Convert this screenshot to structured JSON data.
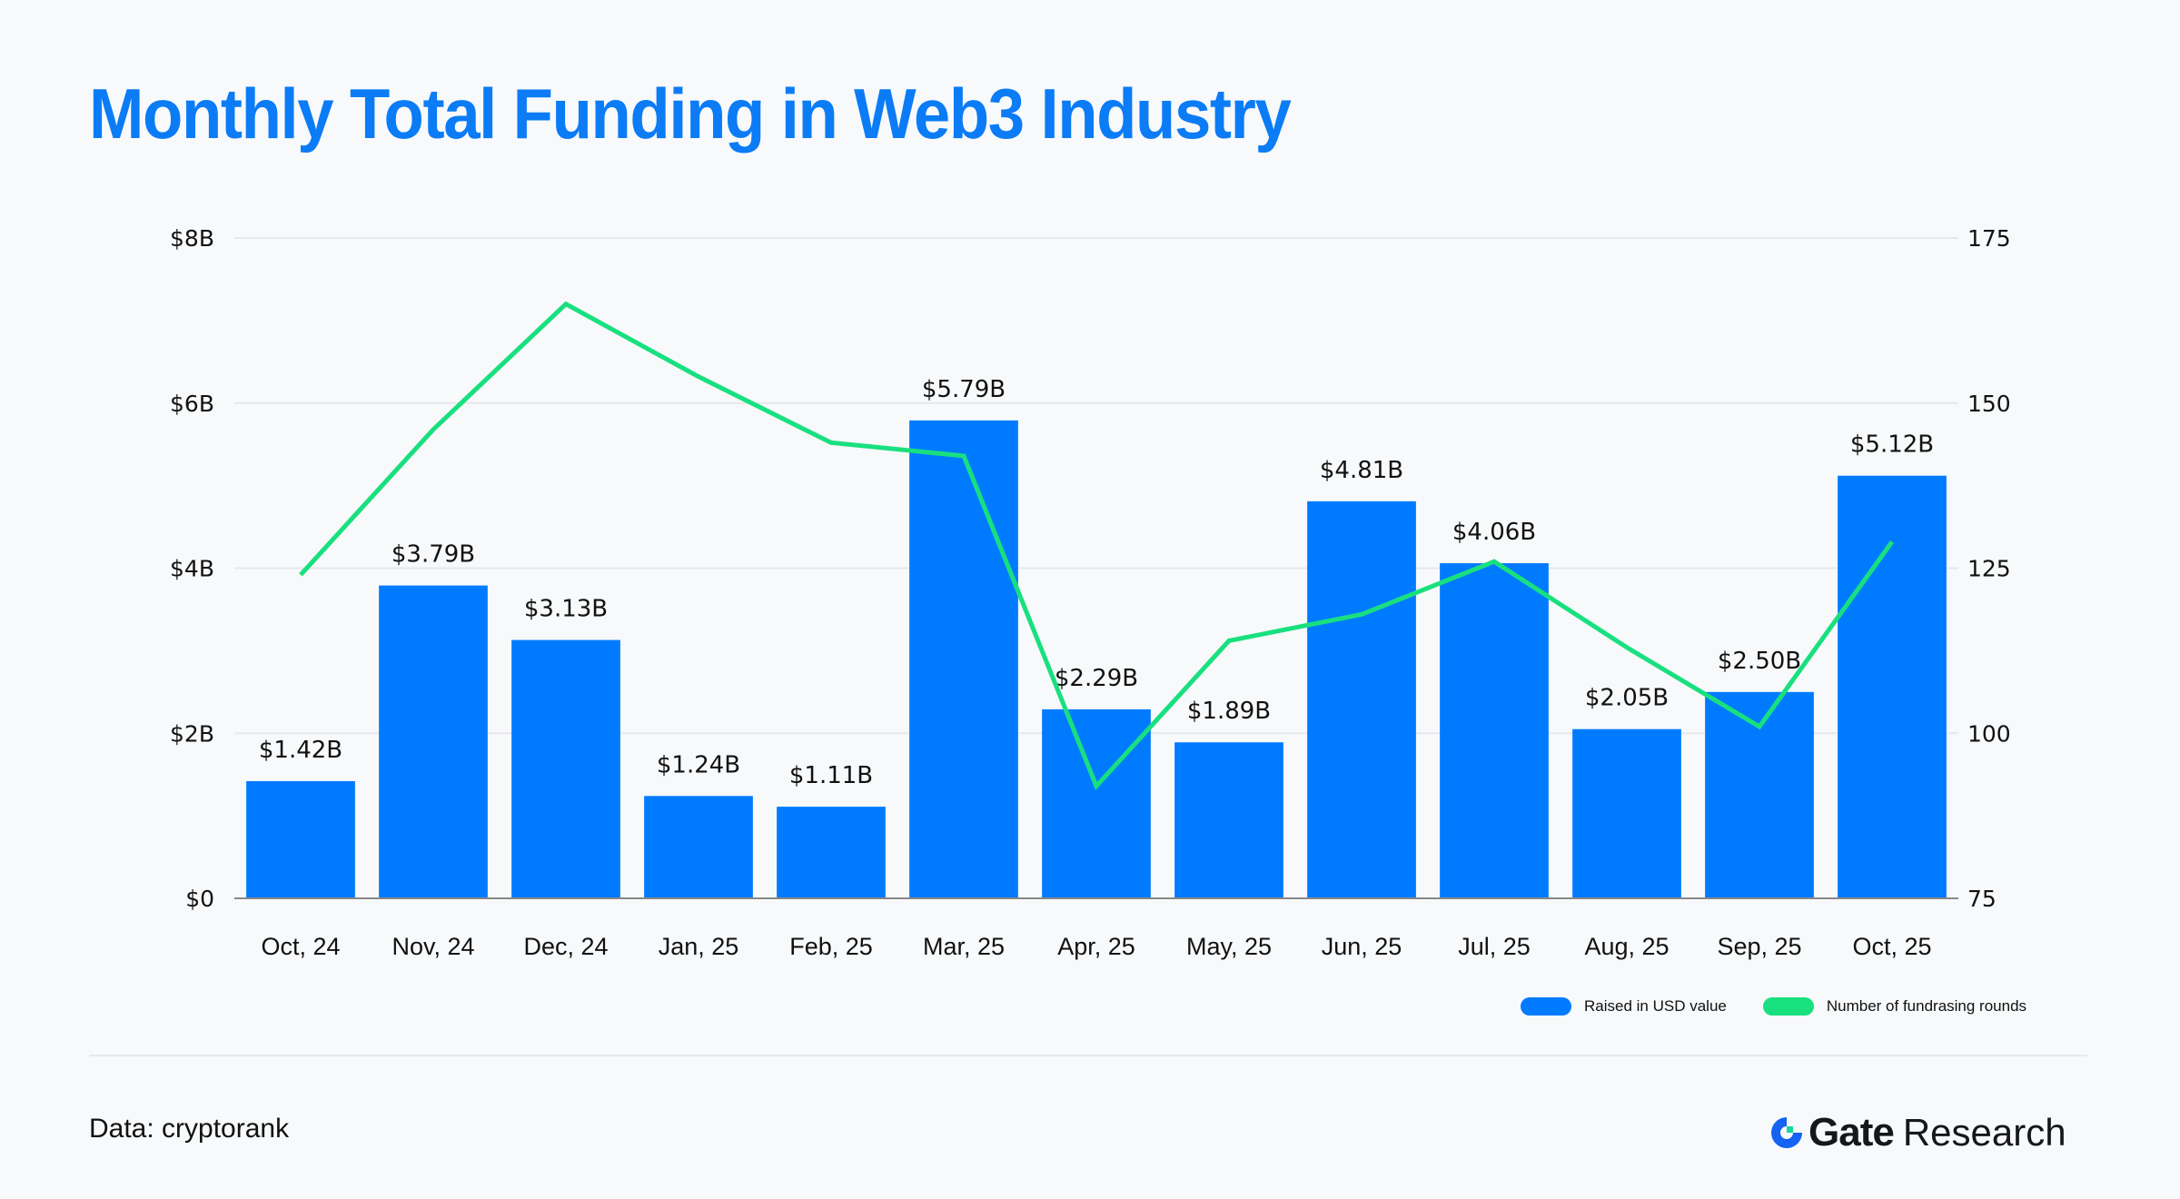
{
  "header": {
    "title": "Monthly Total Funding in Web3 Industry"
  },
  "colors": {
    "bar": "#007bff",
    "line": "#19e07f",
    "title": "#0b7cf5",
    "grid": "#e6e8ec",
    "axis": "#888888"
  },
  "chart_data": {
    "type": "bar",
    "title": "Monthly Total Funding in Web3 Industry",
    "categories": [
      "Oct, 24",
      "Nov, 24",
      "Dec, 24",
      "Jan, 25",
      "Feb, 25",
      "Mar, 25",
      "Apr, 25",
      "May, 25",
      "Jun, 25",
      "Jul, 25",
      "Aug, 25",
      "Sep, 25",
      "Oct, 25"
    ],
    "series": [
      {
        "name": "Raised in USD value",
        "type": "bar",
        "axis": "left",
        "values": [
          1.42,
          3.79,
          3.13,
          1.24,
          1.11,
          5.79,
          2.29,
          1.89,
          4.81,
          4.06,
          2.05,
          2.5,
          5.12
        ],
        "labels": [
          "$1.42B",
          "$3.79B",
          "$3.13B",
          "$1.24B",
          "$1.11B",
          "$5.79B",
          "$2.29B",
          "$1.89B",
          "$4.81B",
          "$4.06B",
          "$2.05B",
          "$2.50B",
          "$5.12B"
        ]
      },
      {
        "name": "Number of fundrasing rounds",
        "type": "line",
        "axis": "right",
        "values": [
          124,
          146,
          165,
          154,
          144,
          142,
          92,
          114,
          118,
          126,
          113,
          101,
          129
        ]
      }
    ],
    "y_left": {
      "ylim": [
        0,
        8
      ],
      "ticks": [
        0,
        2,
        4,
        6,
        8
      ],
      "tick_labels": [
        "$0",
        "$2B",
        "$4B",
        "$6B",
        "$8B"
      ],
      "unit": "USD billions"
    },
    "y_right": {
      "ylim": [
        75,
        175
      ],
      "ticks": [
        75,
        100,
        125,
        150,
        175
      ],
      "tick_labels": [
        "75",
        "100",
        "125",
        "150",
        "175"
      ]
    },
    "xlabel": "",
    "ylabel": "",
    "grid": true,
    "legend_position": "bottom-right"
  },
  "legend": [
    {
      "label": "Raised in USD value",
      "color": "#007bff"
    },
    {
      "label": "Number of fundrasing rounds",
      "color": "#19e07f"
    }
  ],
  "footer": {
    "source": "Data: cryptorank",
    "brand_name": "Gate",
    "brand_suffix": "Research"
  }
}
